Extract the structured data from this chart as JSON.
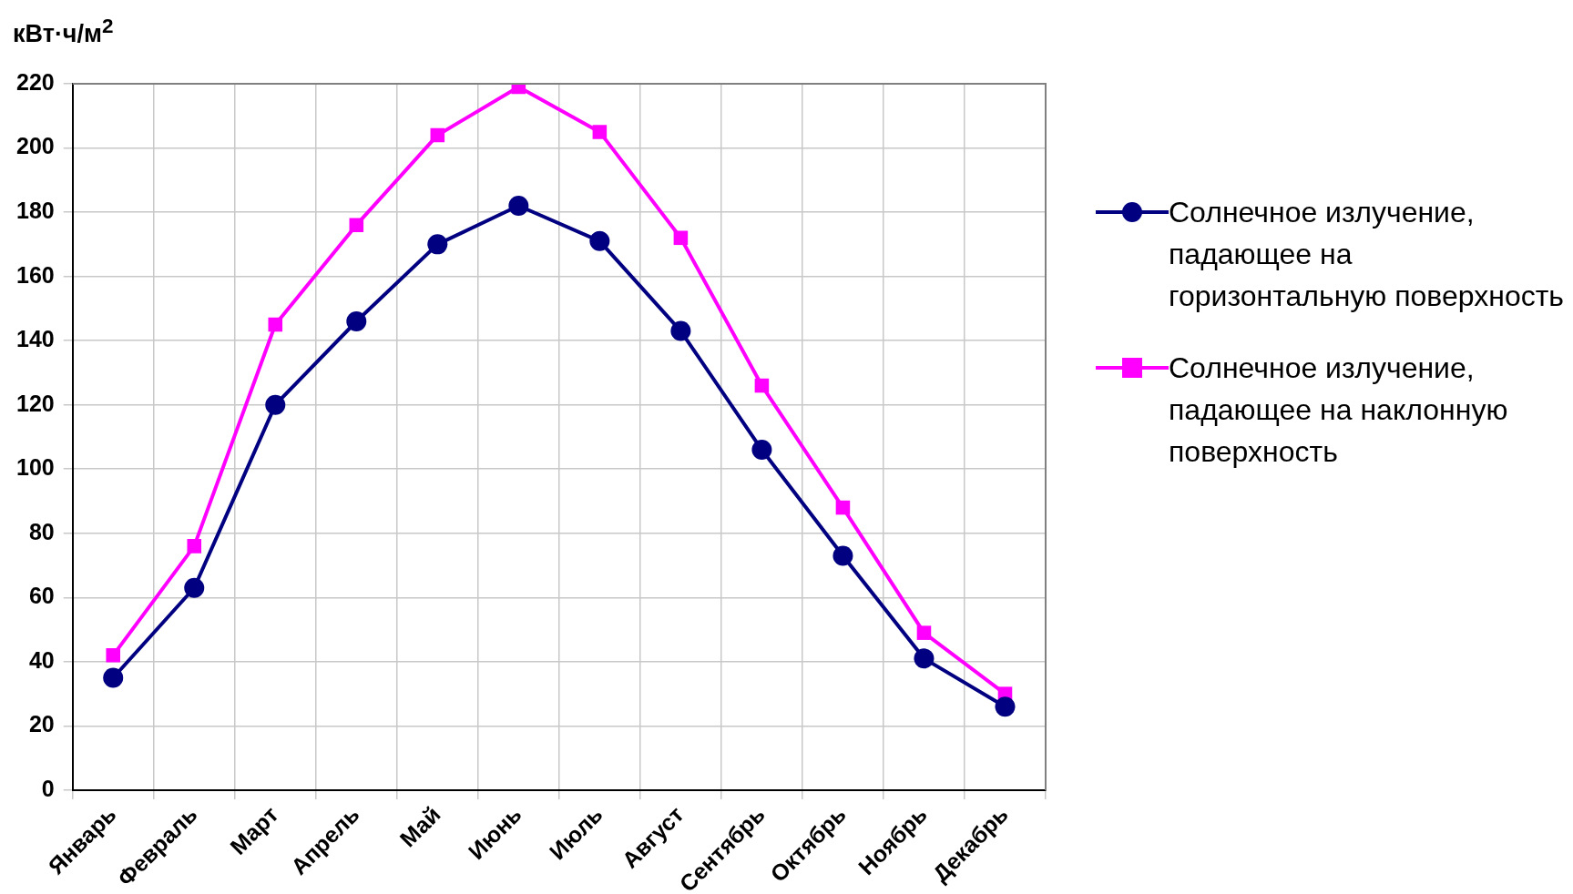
{
  "chart_data": {
    "type": "line",
    "ylabel": "кВт·ч/м$^{2}$",
    "categories": [
      "Январь",
      "Февраль",
      "Март",
      "Апрель",
      "Май",
      "Июнь",
      "Июль",
      "Август",
      "Сентябрь",
      "Октябрь",
      "Ноябрь",
      "Декабрь"
    ],
    "series": [
      {
        "name": "Солнечное излучение, падающее на горизонтальную поверхность",
        "color": "#000080",
        "marker": "circle",
        "values": [
          35,
          63,
          120,
          146,
          170,
          182,
          171,
          143,
          106,
          73,
          41,
          26
        ]
      },
      {
        "name": "Солнечное излучение, падающее на наклонную поверхность",
        "color": "#ff00ff",
        "marker": "square",
        "values": [
          42,
          76,
          145,
          176,
          204,
          219,
          205,
          172,
          126,
          88,
          49,
          30
        ]
      }
    ],
    "ylim": [
      0,
      220
    ],
    "yticks": [
      0,
      20,
      40,
      60,
      80,
      100,
      120,
      140,
      160,
      180,
      200,
      220
    ],
    "grid": true,
    "legend": "right",
    "line_style": "solid"
  }
}
